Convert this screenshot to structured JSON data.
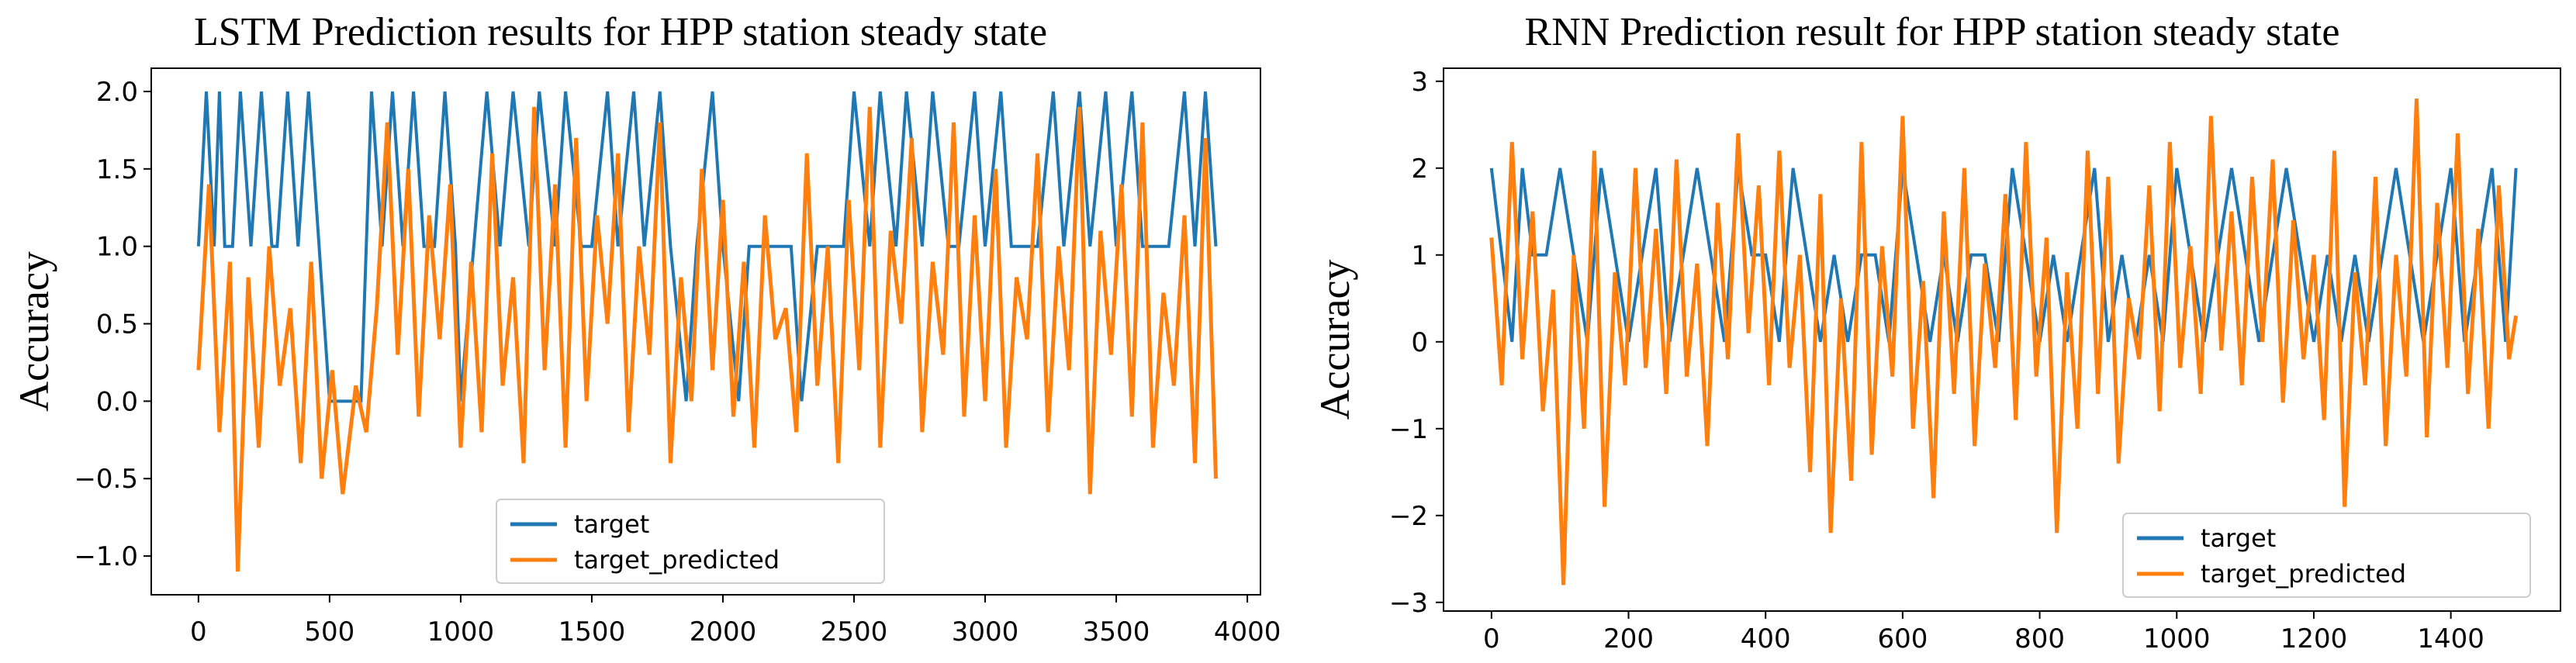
{
  "colors": {
    "target": "#1f77b4",
    "target_predicted": "#ff7f0e"
  },
  "chart_data": [
    {
      "type": "line",
      "title": "LSTM Prediction results for HPP station steady state",
      "xlabel": "",
      "ylabel": "Accuracy",
      "xlim": [
        -180,
        4050
      ],
      "ylim": [
        -1.25,
        2.15
      ],
      "xticks": [
        0,
        500,
        1000,
        1500,
        2000,
        2500,
        3000,
        3500,
        4000
      ],
      "xtick_labels": [
        "0",
        "500",
        "1000",
        "1500",
        "2000",
        "2500",
        "3000",
        "3500",
        "4000"
      ],
      "yticks": [
        -1.0,
        -0.5,
        0.0,
        0.5,
        1.0,
        1.5,
        2.0
      ],
      "ytick_labels": [
        "−1.0",
        "−0.5",
        "0.0",
        "0.5",
        "1.0",
        "1.5",
        "2.0"
      ],
      "legend": {
        "position": "lower-center",
        "entries": [
          "target",
          "target_predicted"
        ]
      },
      "series": [
        {
          "name": "target",
          "x": [
            0,
            30,
            60,
            80,
            100,
            130,
            160,
            200,
            240,
            280,
            300,
            340,
            380,
            420,
            460,
            500,
            560,
            620,
            660,
            700,
            740,
            780,
            820,
            860,
            900,
            940,
            980,
            1000,
            1050,
            1100,
            1150,
            1200,
            1260,
            1300,
            1360,
            1400,
            1460,
            1500,
            1560,
            1600,
            1660,
            1700,
            1760,
            1800,
            1860,
            1900,
            1960,
            2000,
            2060,
            2100,
            2160,
            2200,
            2260,
            2300,
            2360,
            2400,
            2460,
            2500,
            2560,
            2600,
            2660,
            2700,
            2760,
            2800,
            2860,
            2900,
            2960,
            3000,
            3060,
            3100,
            3160,
            3200,
            3260,
            3300,
            3360,
            3400,
            3460,
            3500,
            3560,
            3600,
            3660,
            3700,
            3760,
            3800,
            3840,
            3880
          ],
          "y": [
            1,
            2,
            1,
            2,
            1,
            1,
            2,
            1,
            2,
            1,
            1,
            2,
            1,
            2,
            1,
            0,
            0,
            0,
            2,
            1,
            2,
            1,
            2,
            1,
            1,
            2,
            1,
            0,
            1,
            2,
            1,
            2,
            1,
            2,
            1,
            2,
            1,
            1,
            2,
            1,
            2,
            1,
            2,
            1,
            0,
            1,
            2,
            1,
            0,
            1,
            1,
            1,
            1,
            0,
            1,
            1,
            1,
            2,
            1,
            2,
            1,
            2,
            1,
            2,
            1,
            1,
            2,
            1,
            2,
            1,
            1,
            1,
            2,
            1,
            2,
            1,
            2,
            1,
            2,
            1,
            1,
            1,
            2,
            1,
            2,
            1
          ]
        },
        {
          "name": "target_predicted",
          "x": [
            0,
            40,
            80,
            120,
            150,
            190,
            230,
            270,
            310,
            350,
            390,
            430,
            470,
            510,
            550,
            600,
            640,
            680,
            720,
            760,
            800,
            840,
            880,
            920,
            960,
            1000,
            1040,
            1080,
            1120,
            1160,
            1200,
            1240,
            1280,
            1320,
            1360,
            1400,
            1440,
            1480,
            1520,
            1560,
            1600,
            1640,
            1680,
            1720,
            1760,
            1800,
            1840,
            1880,
            1920,
            1960,
            2000,
            2040,
            2080,
            2120,
            2160,
            2200,
            2240,
            2280,
            2320,
            2360,
            2400,
            2440,
            2480,
            2520,
            2560,
            2600,
            2640,
            2680,
            2720,
            2760,
            2800,
            2840,
            2880,
            2920,
            2960,
            3000,
            3040,
            3080,
            3120,
            3160,
            3200,
            3240,
            3280,
            3320,
            3360,
            3400,
            3440,
            3480,
            3520,
            3560,
            3600,
            3640,
            3680,
            3720,
            3760,
            3800,
            3840,
            3880
          ],
          "y": [
            0.2,
            1.4,
            -0.2,
            0.9,
            -1.1,
            0.8,
            -0.3,
            1.0,
            0.1,
            0.6,
            -0.4,
            0.9,
            -0.5,
            0.2,
            -0.6,
            0.1,
            -0.2,
            0.6,
            1.8,
            0.3,
            1.5,
            -0.1,
            1.2,
            0.4,
            1.4,
            -0.3,
            0.9,
            -0.2,
            1.6,
            0.1,
            0.8,
            -0.4,
            1.9,
            0.2,
            1.4,
            -0.3,
            1.7,
            0.0,
            1.2,
            0.5,
            1.6,
            -0.2,
            1.0,
            0.3,
            1.8,
            -0.4,
            0.8,
            0.0,
            1.5,
            0.2,
            1.3,
            -0.1,
            0.9,
            -0.3,
            1.2,
            0.4,
            0.6,
            -0.2,
            1.6,
            0.1,
            1.0,
            -0.4,
            1.3,
            0.2,
            1.9,
            -0.3,
            1.1,
            0.5,
            1.7,
            -0.2,
            0.9,
            0.3,
            1.8,
            -0.1,
            1.2,
            0.0,
            1.5,
            -0.3,
            0.8,
            0.4,
            1.6,
            -0.2,
            1.0,
            0.2,
            1.9,
            -0.6,
            1.1,
            0.3,
            1.4,
            -0.1,
            1.8,
            -0.3,
            0.7,
            0.1,
            1.2,
            -0.4,
            1.7,
            -0.5
          ]
        }
      ]
    },
    {
      "type": "line",
      "title": "RNN Prediction result for HPP station steady state",
      "xlabel": "",
      "ylabel": "Accuracy",
      "xlim": [
        -70,
        1560
      ],
      "ylim": [
        -3.1,
        3.15
      ],
      "xticks": [
        0,
        200,
        400,
        600,
        800,
        1000,
        1200,
        1400
      ],
      "xtick_labels": [
        "0",
        "200",
        "400",
        "600",
        "800",
        "1000",
        "1200",
        "1400"
      ],
      "yticks": [
        -3,
        -2,
        -1,
        0,
        1,
        2,
        3
      ],
      "ytick_labels": [
        "−3",
        "−2",
        "−1",
        "0",
        "1",
        "2",
        "3"
      ],
      "legend": {
        "position": "lower-right",
        "entries": [
          "target",
          "target_predicted"
        ]
      },
      "series": [
        {
          "name": "target",
          "x": [
            0,
            15,
            30,
            45,
            60,
            80,
            100,
            120,
            140,
            160,
            180,
            200,
            220,
            240,
            260,
            280,
            300,
            320,
            340,
            360,
            380,
            400,
            420,
            440,
            460,
            480,
            500,
            520,
            540,
            560,
            580,
            600,
            620,
            640,
            660,
            680,
            700,
            720,
            740,
            760,
            780,
            800,
            820,
            840,
            860,
            880,
            900,
            920,
            940,
            960,
            980,
            1000,
            1020,
            1040,
            1060,
            1080,
            1100,
            1120,
            1140,
            1160,
            1180,
            1200,
            1220,
            1240,
            1260,
            1280,
            1300,
            1320,
            1340,
            1360,
            1380,
            1400,
            1420,
            1440,
            1460,
            1480,
            1495
          ],
          "y": [
            2,
            1,
            0,
            2,
            1,
            1,
            2,
            1,
            0,
            2,
            1,
            0,
            1,
            2,
            0,
            1,
            2,
            1,
            0,
            2,
            1,
            1,
            0,
            2,
            1,
            0,
            1,
            0,
            1,
            1,
            0,
            2,
            1,
            0,
            1,
            0,
            1,
            1,
            0,
            2,
            1,
            0,
            1,
            0,
            1,
            2,
            0,
            1,
            0,
            1,
            0,
            2,
            1,
            0,
            1,
            2,
            1,
            0,
            1,
            2,
            1,
            0,
            1,
            0,
            1,
            0,
            1,
            2,
            1,
            0,
            1,
            2,
            0,
            1,
            2,
            0,
            2
          ]
        },
        {
          "name": "target_predicted",
          "x": [
            0,
            15,
            30,
            45,
            60,
            75,
            90,
            105,
            120,
            135,
            150,
            165,
            180,
            195,
            210,
            225,
            240,
            255,
            270,
            285,
            300,
            315,
            330,
            345,
            360,
            375,
            390,
            405,
            420,
            435,
            450,
            465,
            480,
            495,
            510,
            525,
            540,
            555,
            570,
            585,
            600,
            615,
            630,
            645,
            660,
            675,
            690,
            705,
            720,
            735,
            750,
            765,
            780,
            795,
            810,
            825,
            840,
            855,
            870,
            885,
            900,
            915,
            930,
            945,
            960,
            975,
            990,
            1005,
            1020,
            1035,
            1050,
            1065,
            1080,
            1095,
            1110,
            1125,
            1140,
            1155,
            1170,
            1185,
            1200,
            1215,
            1230,
            1245,
            1260,
            1275,
            1290,
            1305,
            1320,
            1335,
            1350,
            1365,
            1380,
            1395,
            1410,
            1425,
            1440,
            1455,
            1470,
            1485,
            1495
          ],
          "y": [
            1.2,
            -0.5,
            2.3,
            -0.2,
            1.5,
            -0.8,
            0.6,
            -2.8,
            1.0,
            -1.0,
            2.2,
            -1.9,
            0.8,
            -0.5,
            2.0,
            -0.3,
            1.3,
            -0.6,
            2.1,
            -0.4,
            0.9,
            -1.2,
            1.6,
            -0.2,
            2.4,
            0.1,
            1.8,
            -0.5,
            2.2,
            -0.3,
            1.0,
            -1.5,
            1.7,
            -2.2,
            0.5,
            -1.6,
            2.3,
            -1.3,
            1.1,
            -0.4,
            2.6,
            -1.0,
            0.7,
            -1.8,
            1.5,
            -0.6,
            2.0,
            -1.2,
            0.9,
            -0.3,
            1.7,
            -0.9,
            2.3,
            -0.4,
            1.2,
            -2.2,
            0.8,
            -1.0,
            2.2,
            -0.6,
            1.9,
            -1.4,
            0.5,
            -0.2,
            1.8,
            -0.8,
            2.3,
            -0.3,
            1.1,
            -0.6,
            2.6,
            -0.1,
            1.5,
            -0.5,
            1.9,
            0.0,
            2.1,
            -0.7,
            1.4,
            -0.2,
            1.0,
            -0.9,
            2.2,
            -1.9,
            0.8,
            -0.5,
            1.9,
            -1.2,
            1.0,
            -0.4,
            2.8,
            -1.1,
            1.6,
            -0.3,
            2.4,
            -0.6,
            1.3,
            -1.0,
            1.8,
            -0.2,
            0.3
          ]
        }
      ]
    }
  ]
}
